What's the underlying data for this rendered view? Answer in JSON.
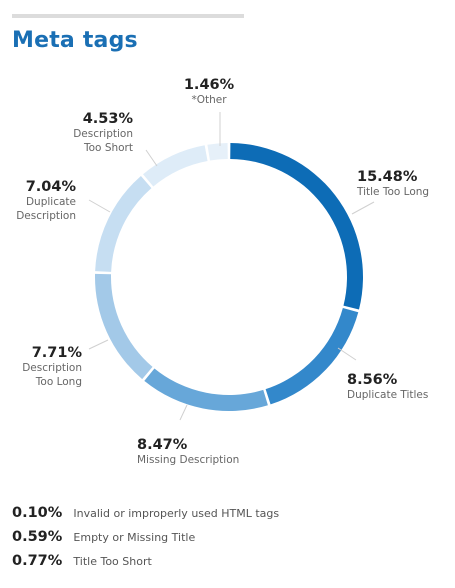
{
  "page": {
    "title": "Meta tags"
  },
  "colors": {
    "title": "#1a6fb4",
    "divider": "#dcdcdc",
    "leader": "#d0d0d0"
  },
  "chart_data": {
    "type": "pie",
    "style": "donut",
    "title": "Meta tags",
    "slices": [
      {
        "pct": 15.48,
        "pct_label": "15.48%",
        "name": "Title Too Long",
        "color": "#0d6cb6"
      },
      {
        "pct": 8.56,
        "pct_label": "8.56%",
        "name": "Duplicate Titles",
        "color": "#3388cb"
      },
      {
        "pct": 8.47,
        "pct_label": "8.47%",
        "name": "Missing Description",
        "color": "#67a7d9"
      },
      {
        "pct": 7.71,
        "pct_label": "7.71%",
        "name": "Description Too Long",
        "color": "#a3c9e8"
      },
      {
        "pct": 7.04,
        "pct_label": "7.04%",
        "name": "Duplicate Description",
        "color": "#c6def2"
      },
      {
        "pct": 4.53,
        "pct_label": "4.53%",
        "name": "Description Too Short",
        "color": "#deecf8"
      },
      {
        "pct": 1.46,
        "pct_label": "1.46%",
        "name": "*Other",
        "color": "#e6f0f9"
      }
    ],
    "other_breakdown": [
      {
        "pct": 0.1,
        "pct_label": "0.10%",
        "name": "Invalid or improperly used HTML tags"
      },
      {
        "pct": 0.59,
        "pct_label": "0.59%",
        "name": "Empty or Missing Title"
      },
      {
        "pct": 0.77,
        "pct_label": "0.77%",
        "name": "Title Too Short"
      }
    ]
  }
}
